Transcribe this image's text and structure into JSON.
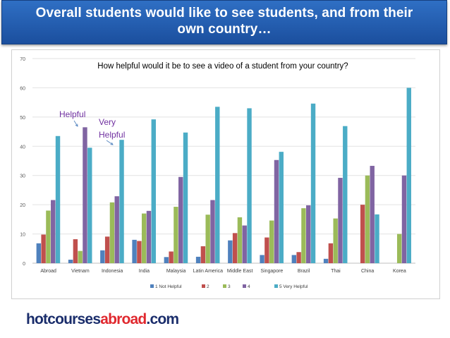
{
  "banner": {
    "line1": "Overall students would like to see students, and from their",
    "line2": "own country…"
  },
  "logo": {
    "part1": "hotcourses",
    "part2": "abroad",
    "part3": ".com"
  },
  "annotations": {
    "helpful": "Helpful",
    "very_line1": "Very",
    "very_line2": "Helpful"
  },
  "colors": {
    "series": [
      "#4f81bd",
      "#c0504d",
      "#9bbb59",
      "#8064a2",
      "#4bacc6"
    ],
    "banner": "#2563b5"
  },
  "chart_data": {
    "type": "bar",
    "title": "How helpful would it be to see a video of a student from your country?",
    "categories": [
      "Abroad",
      "Vietnam",
      "Indonesia",
      "India",
      "Malaysia",
      "Latin America",
      "Middle East",
      "Singapore",
      "Brazil",
      "Thai",
      "China",
      "Korea"
    ],
    "ylim": [
      0,
      70
    ],
    "yticks": [
      0,
      10,
      20,
      30,
      40,
      50,
      60,
      70
    ],
    "grid": true,
    "legend_position": "bottom",
    "series": [
      {
        "name": "1 Not Helpful",
        "values": [
          6.8,
          1.2,
          4.4,
          8.0,
          2.1,
          2.2,
          7.8,
          2.8,
          2.8,
          1.5,
          0,
          0
        ]
      },
      {
        "name": "2",
        "values": [
          9.8,
          8.2,
          9.1,
          7.6,
          4.0,
          5.8,
          10.3,
          8.8,
          3.8,
          6.8,
          20.0,
          0
        ]
      },
      {
        "name": "3",
        "values": [
          18.0,
          4.2,
          20.8,
          17.0,
          19.3,
          16.6,
          15.7,
          14.6,
          18.8,
          15.3,
          30.0,
          10.0
        ]
      },
      {
        "name": "4",
        "values": [
          21.6,
          46.5,
          22.9,
          17.9,
          29.5,
          21.6,
          12.9,
          35.3,
          19.8,
          29.2,
          33.3,
          30.0
        ]
      },
      {
        "name": "5 Very Helpful",
        "values": [
          43.5,
          39.5,
          42.2,
          49.2,
          44.7,
          53.5,
          53.0,
          38.1,
          54.6,
          46.9,
          16.7,
          60.0
        ]
      }
    ]
  }
}
